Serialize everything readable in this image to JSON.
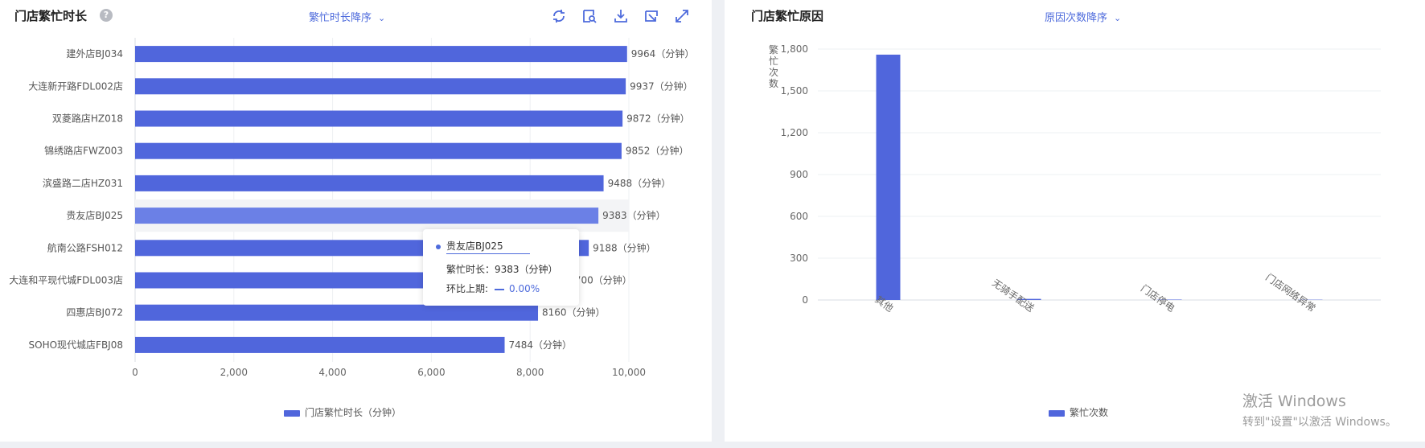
{
  "left_panel": {
    "title": "门店繁忙时长",
    "help_icon": "question-icon",
    "sort_label": "繁忙时长降序",
    "toolbar": [
      "refresh-icon",
      "zoom-view-icon",
      "download-icon",
      "restore-icon",
      "fullscreen-icon"
    ],
    "legend_label": "门店繁忙时长（分钟）",
    "tooltip": {
      "store": "贵友店BJ025",
      "duration": "繁忙时长：9383（分钟）",
      "compare_label": "环比上期:",
      "compare_value": "0.00%"
    }
  },
  "right_panel": {
    "title": "门店繁忙原因",
    "sort_label": "原因次数降序",
    "legend_label": "繁忙次数"
  },
  "watermark": {
    "line1": "激活 Windows",
    "line2": "转到\"设置\"以激活 Windows。"
  },
  "colors": {
    "bar": "#5066dc",
    "bar_highlight": "#6b80e6",
    "accent": "#4e6bdc"
  },
  "chart_data": [
    {
      "type": "bar",
      "orientation": "horizontal",
      "categories": [
        "建外店BJ034",
        "大连新开路FDL002店",
        "双菱路店HZ018",
        "锦绣路店FWZ003",
        "滨盛路二店HZ031",
        "贵友店BJ025",
        "航南公路FSH012",
        "大连和平现代城FDL003店",
        "四惠店BJ072",
        "SOHO现代城店FBJ08"
      ],
      "values": [
        9964,
        9937,
        9872,
        9852,
        9488,
        9383,
        9188,
        8700,
        8160,
        7484
      ],
      "label_suffix": "（分钟）",
      "xlim": [
        0,
        10000
      ],
      "xticks": [
        "0",
        "2,000",
        "4,000",
        "6,000",
        "8,000",
        "10,000"
      ],
      "series_name": "门店繁忙时长（分钟）",
      "highlighted": "贵友店BJ025",
      "grid": true,
      "legend": "bottom-center"
    },
    {
      "type": "bar",
      "categories": [
        "其他",
        "无骑手配送",
        "门店停电",
        "门店网络异常"
      ],
      "values": [
        1760,
        8,
        3,
        2
      ],
      "ylabel": "繁忙次数",
      "ylim": [
        0,
        1800
      ],
      "yticks": [
        "0",
        "300",
        "600",
        "900",
        "1,200",
        "1,500",
        "1,800"
      ],
      "series_name": "繁忙次数",
      "grid": true,
      "legend": "bottom-center"
    }
  ]
}
